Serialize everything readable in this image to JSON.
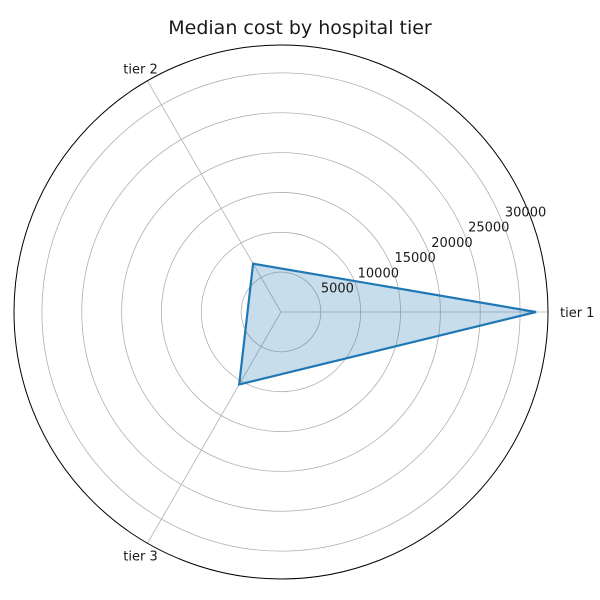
{
  "chart_data": {
    "type": "radar",
    "title": "Median cost by hospital tier",
    "categories": [
      "tier 1",
      "tier 2",
      "tier 3"
    ],
    "series": [
      {
        "values": [
          32000,
          7000,
          10500
        ],
        "color": "#1f77b4"
      }
    ],
    "radial_ticks": [
      5000,
      10000,
      15000,
      20000,
      25000,
      30000
    ],
    "rlim": [
      0,
      33500
    ],
    "grid": true,
    "line_color": "#1f77b4",
    "fill_color": "#1f77b4"
  }
}
